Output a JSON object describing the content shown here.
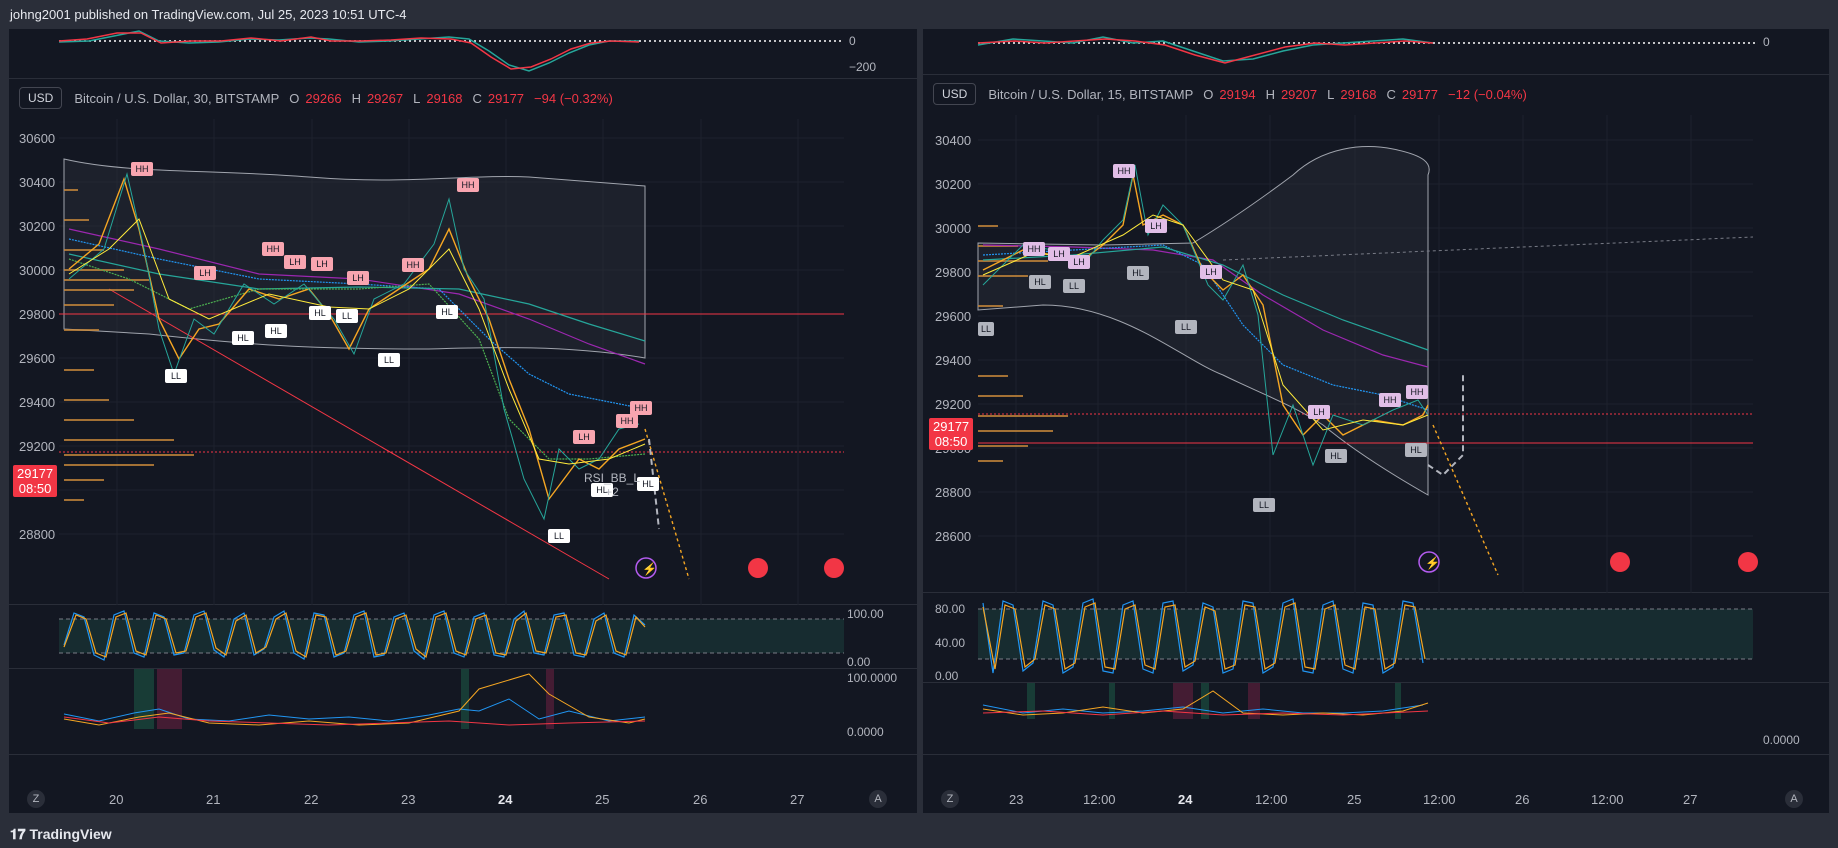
{
  "header": {
    "publisher": "johng2001 published on TradingView.com, Jul 25, 2023 10:51 UTC-4"
  },
  "footer": {
    "logo_text": "TradingView"
  },
  "colors": {
    "bg": "#131722",
    "up": "#26a69a",
    "down": "#f23645",
    "hh": "#f8a5b0",
    "hl": "#ffffff"
  },
  "left": {
    "top_osc": {
      "zero": "0",
      "neg": "−200"
    },
    "currency": "USD",
    "symbol": "Bitcoin / U.S. Dollar, 30, BITSTAMP",
    "o_label": "O",
    "o": "29266",
    "h_label": "H",
    "h": "29267",
    "l_label": "L",
    "l": "29168",
    "c_label": "C",
    "c": "29177",
    "change": "−94 (−0.32%)",
    "price_axis": [
      "30600",
      "30400",
      "30200",
      "30000",
      "29800",
      "29600",
      "29400",
      "29200",
      "29000",
      "28800"
    ],
    "price_tag": {
      "price": "29177",
      "countdown": "08:50"
    },
    "time_axis": [
      "20",
      "21",
      "22",
      "23",
      "24",
      "25",
      "26",
      "27"
    ],
    "stoch_axis": [
      "100.00",
      "0.00"
    ],
    "vol_axis": [
      "100.0000",
      "0.0000"
    ],
    "annotation": "RSI_BB_L\n+2",
    "labels": [
      "HH",
      "LH",
      "HH",
      "LH",
      "LH",
      "LH",
      "HH",
      "HH",
      "LH",
      "HH",
      "HH",
      "LL",
      "HL",
      "HL",
      "HL",
      "LL",
      "LL",
      "HL",
      "LL",
      "HL",
      "HL"
    ]
  },
  "right": {
    "top_osc": {
      "zero": "0"
    },
    "currency": "USD",
    "symbol": "Bitcoin / U.S. Dollar, 15, BITSTAMP",
    "o_label": "O",
    "o": "29194",
    "h_label": "H",
    "h": "29207",
    "l_label": "L",
    "l": "29168",
    "c_label": "C",
    "c": "29177",
    "change": "−12 (−0.04%)",
    "price_axis": [
      "30400",
      "30200",
      "30000",
      "29800",
      "29600",
      "29400",
      "29200",
      "29000",
      "28800",
      "28600"
    ],
    "price_tag": {
      "price": "29177",
      "countdown": "08:50"
    },
    "time_axis": [
      "23",
      "12:00",
      "24",
      "12:00",
      "25",
      "12:00",
      "26",
      "12:00",
      "27"
    ],
    "stoch_axis": [
      "80.00",
      "40.00",
      "0.00"
    ],
    "vol_axis": [
      "0.0000"
    ]
  },
  "corner_buttons": {
    "zoom": "Z",
    "auto": "A"
  }
}
